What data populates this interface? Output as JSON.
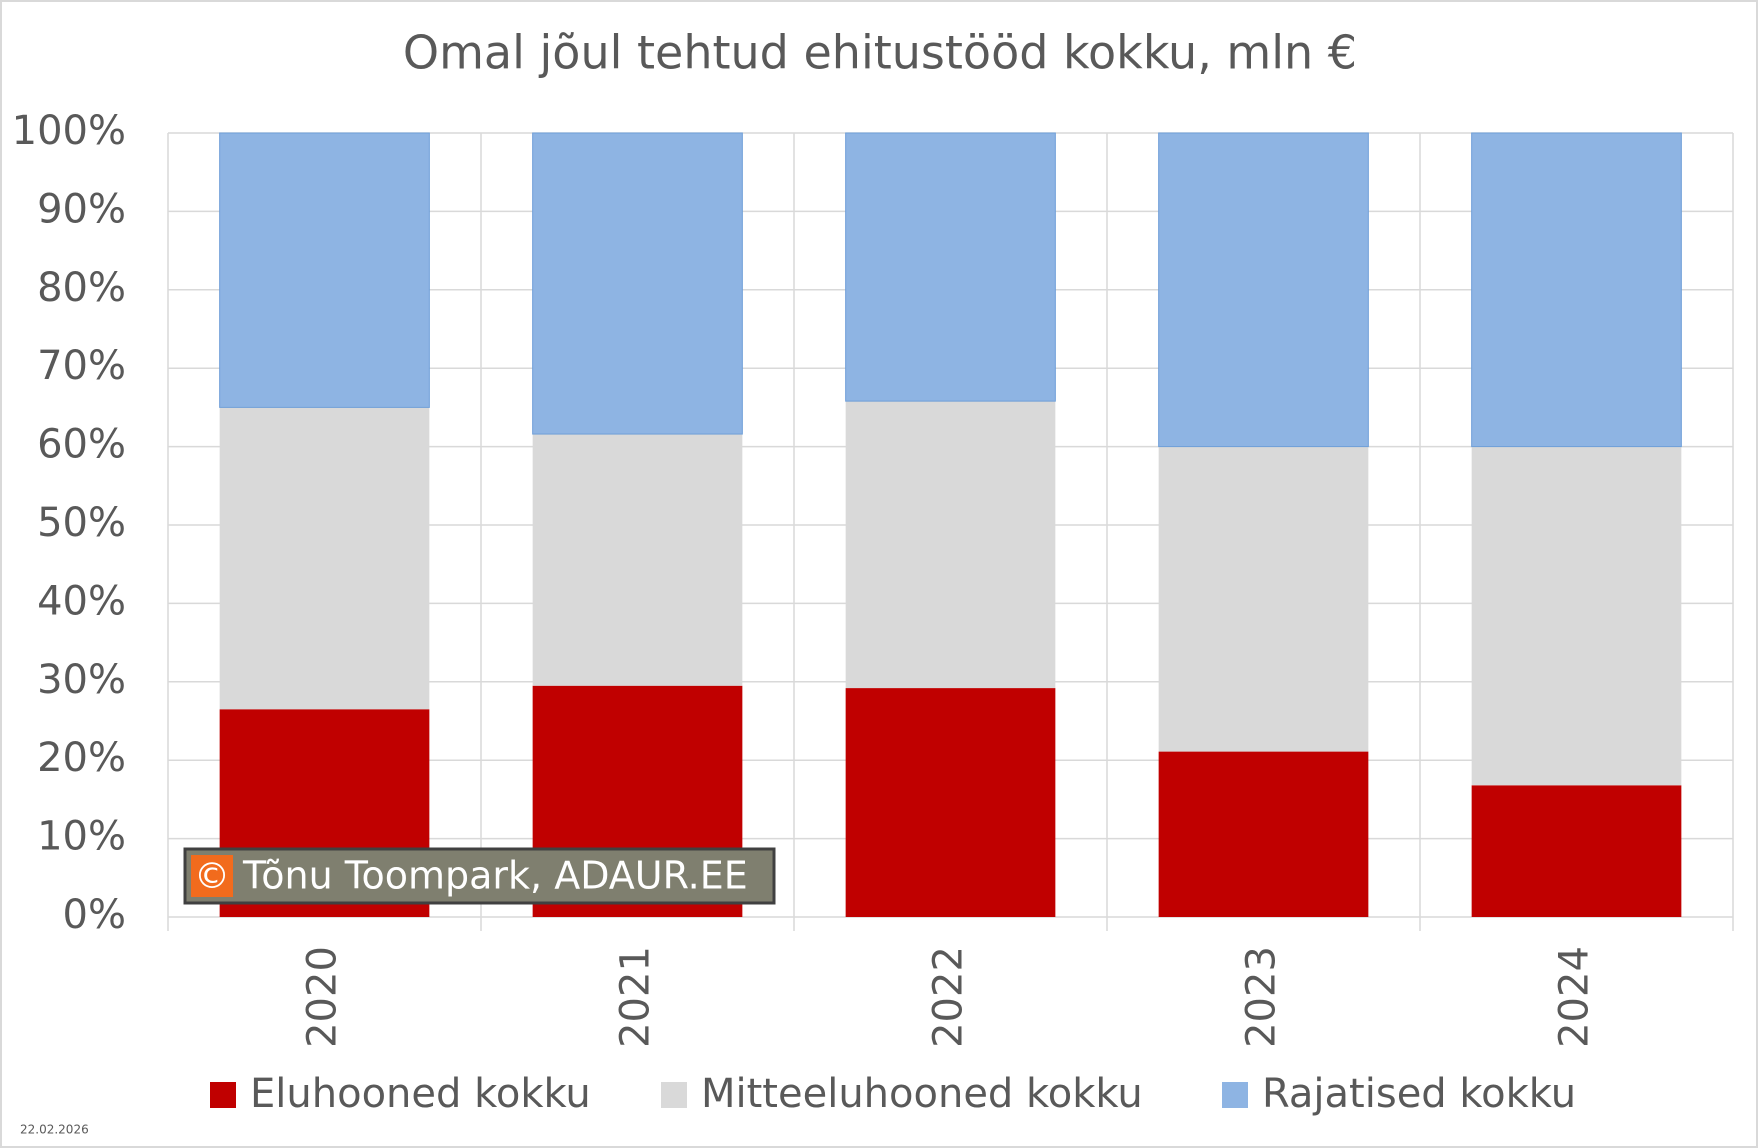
{
  "chart_data": {
    "type": "stacked_bar_percent",
    "title": "Omal jõul tehtud ehitustööd kokku, mln €",
    "categories": [
      "2020",
      "2021",
      "2022",
      "2023",
      "2024"
    ],
    "series": [
      {
        "name": "Eluhooned kokku",
        "color": "#c00000",
        "values": [
          26.5,
          29.5,
          29.2,
          21.1,
          16.8
        ]
      },
      {
        "name": "Mitteeluhooned kokku",
        "color": "#d9d9d9",
        "values": [
          38.5,
          32.1,
          36.6,
          38.9,
          43.2
        ]
      },
      {
        "name": "Rajatised kokku",
        "color": "#8eb4e3",
        "values": [
          35,
          38.4,
          34.2,
          40,
          40
        ]
      }
    ],
    "ylim": [
      0,
      100
    ],
    "yticks": [
      {
        "value": 0,
        "label": "0%"
      },
      {
        "value": 10,
        "label": "10%"
      },
      {
        "value": 20,
        "label": "20%"
      },
      {
        "value": 30,
        "label": "30%"
      },
      {
        "value": 40,
        "label": "40%"
      },
      {
        "value": 50,
        "label": "50%"
      },
      {
        "value": 60,
        "label": "60%"
      },
      {
        "value": 70,
        "label": "70%"
      },
      {
        "value": 80,
        "label": "80%"
      },
      {
        "value": 90,
        "label": "90%"
      },
      {
        "value": 100,
        "label": "100%"
      }
    ],
    "grid": true,
    "legend": "bottom",
    "watermark_icon": "©",
    "watermark": "Tõnu Toompark, ADAUR.EE",
    "date": "22.02.2026"
  }
}
